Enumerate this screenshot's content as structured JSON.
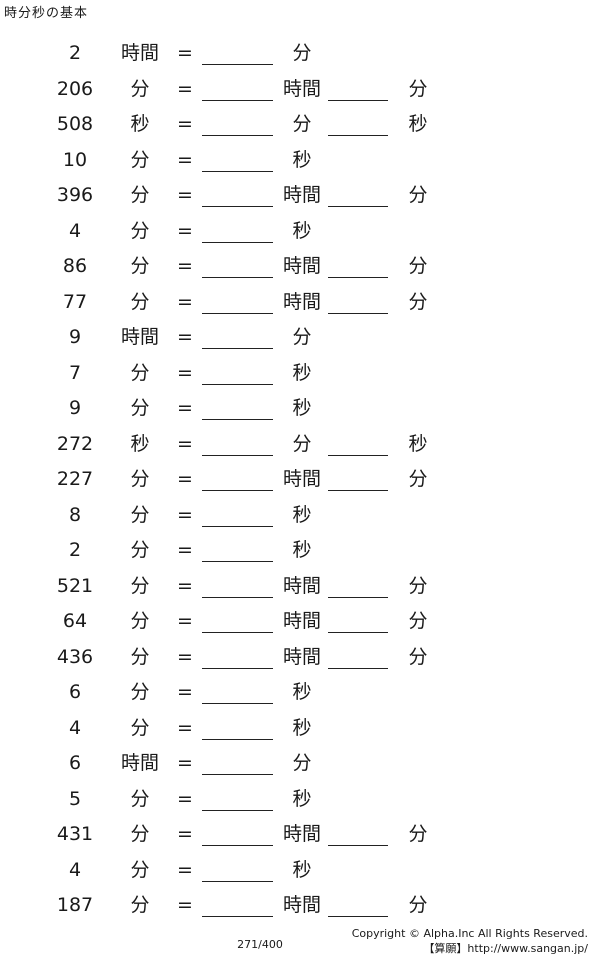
{
  "title": "時分秒の基本",
  "equals": "=",
  "rows": [
    {
      "n": "2",
      "u": "時間",
      "u2": "分",
      "u3": ""
    },
    {
      "n": "206",
      "u": "分",
      "u2": "時間",
      "u3": "分"
    },
    {
      "n": "508",
      "u": "秒",
      "u2": "分",
      "u3": "秒"
    },
    {
      "n": "10",
      "u": "分",
      "u2": "秒",
      "u3": ""
    },
    {
      "n": "396",
      "u": "分",
      "u2": "時間",
      "u3": "分"
    },
    {
      "n": "4",
      "u": "分",
      "u2": "秒",
      "u3": ""
    },
    {
      "n": "86",
      "u": "分",
      "u2": "時間",
      "u3": "分"
    },
    {
      "n": "77",
      "u": "分",
      "u2": "時間",
      "u3": "分"
    },
    {
      "n": "9",
      "u": "時間",
      "u2": "分",
      "u3": ""
    },
    {
      "n": "7",
      "u": "分",
      "u2": "秒",
      "u3": ""
    },
    {
      "n": "9",
      "u": "分",
      "u2": "秒",
      "u3": ""
    },
    {
      "n": "272",
      "u": "秒",
      "u2": "分",
      "u3": "秒"
    },
    {
      "n": "227",
      "u": "分",
      "u2": "時間",
      "u3": "分"
    },
    {
      "n": "8",
      "u": "分",
      "u2": "秒",
      "u3": ""
    },
    {
      "n": "2",
      "u": "分",
      "u2": "秒",
      "u3": ""
    },
    {
      "n": "521",
      "u": "分",
      "u2": "時間",
      "u3": "分"
    },
    {
      "n": "64",
      "u": "分",
      "u2": "時間",
      "u3": "分"
    },
    {
      "n": "436",
      "u": "分",
      "u2": "時間",
      "u3": "分"
    },
    {
      "n": "6",
      "u": "分",
      "u2": "秒",
      "u3": ""
    },
    {
      "n": "4",
      "u": "分",
      "u2": "秒",
      "u3": ""
    },
    {
      "n": "6",
      "u": "時間",
      "u2": "分",
      "u3": ""
    },
    {
      "n": "5",
      "u": "分",
      "u2": "秒",
      "u3": ""
    },
    {
      "n": "431",
      "u": "分",
      "u2": "時間",
      "u3": "分"
    },
    {
      "n": "4",
      "u": "分",
      "u2": "秒",
      "u3": ""
    },
    {
      "n": "187",
      "u": "分",
      "u2": "時間",
      "u3": "分"
    }
  ],
  "page_number": "271/400",
  "copyright": "Copyright © Alpha.Inc All Rights Reserved.",
  "site": "【算願】http://www.sangan.jp/"
}
